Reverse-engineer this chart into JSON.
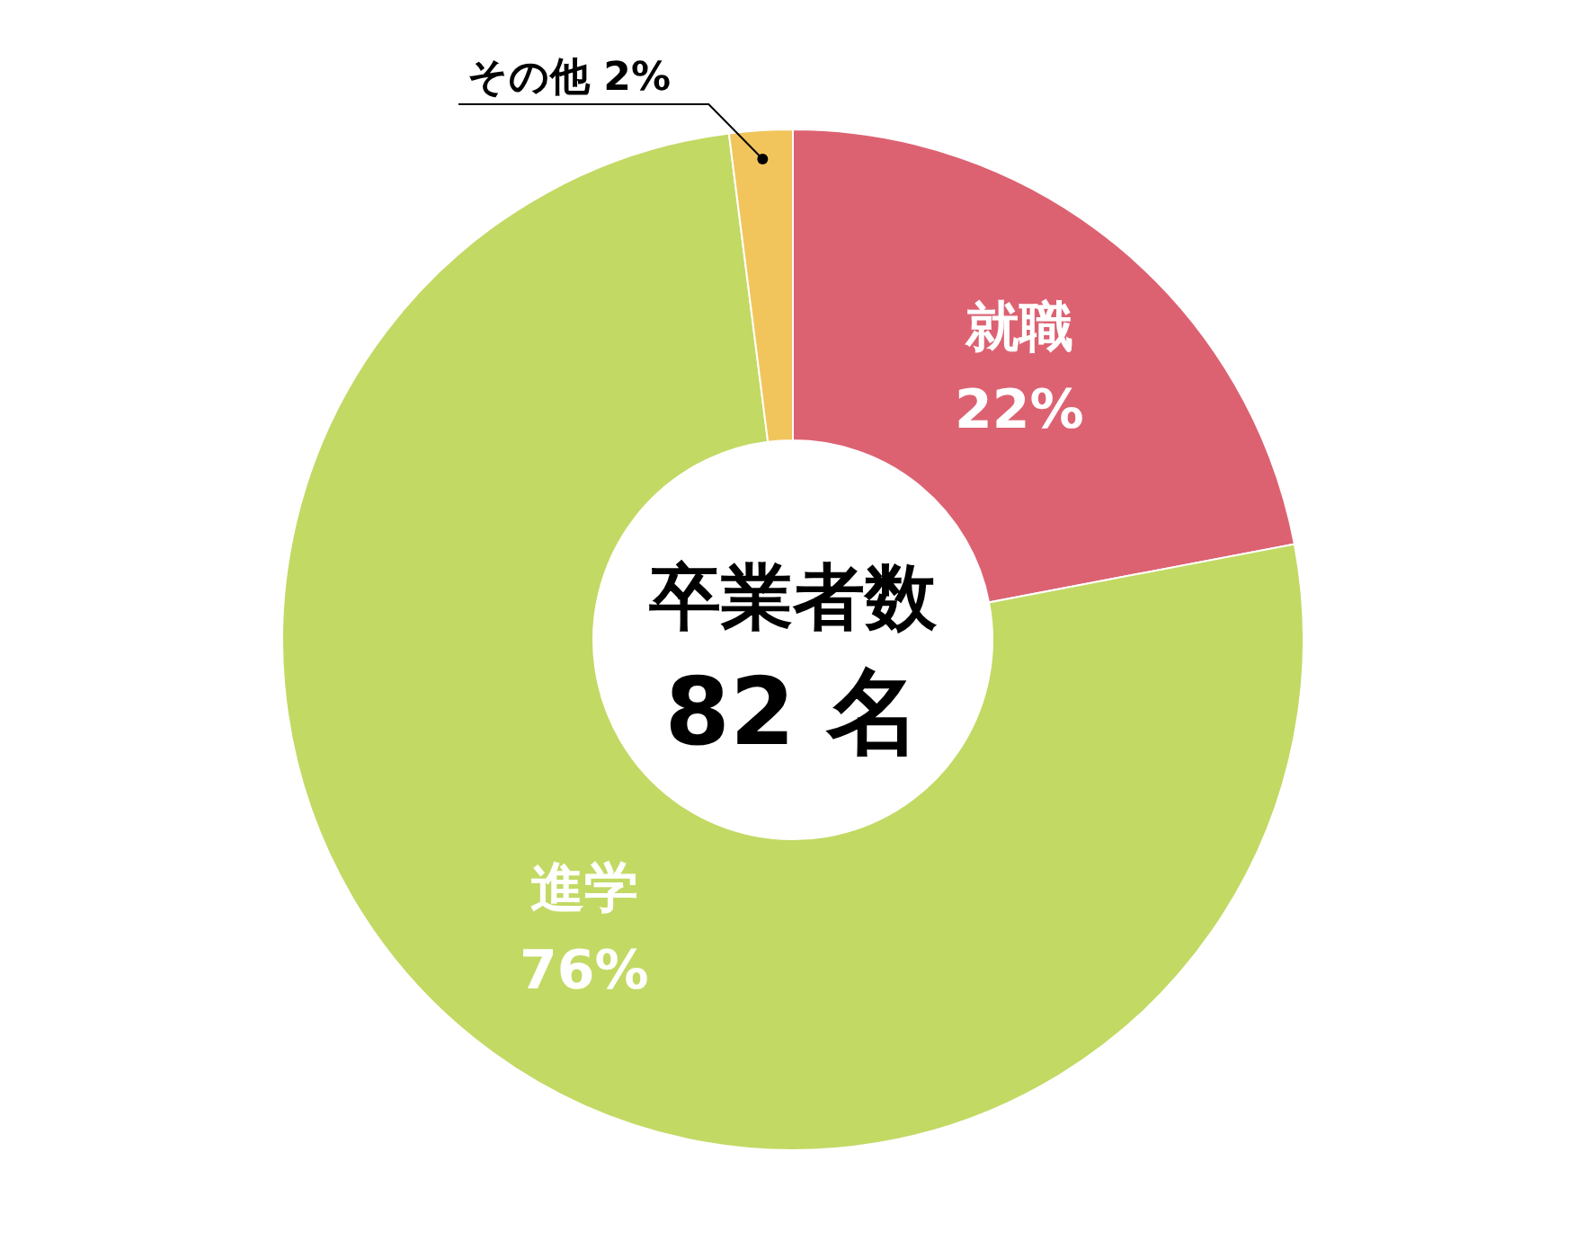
{
  "chart_data": {
    "type": "donut",
    "categories": [
      "就職",
      "進学",
      "その他"
    ],
    "values": [
      22,
      76,
      2
    ],
    "colors": [
      "#dc6272",
      "#c2d964",
      "#f2c55c"
    ],
    "value_labels": [
      "22%",
      "76%",
      "2%"
    ],
    "annotations": [
      "卒業者数",
      "82 名"
    ]
  }
}
